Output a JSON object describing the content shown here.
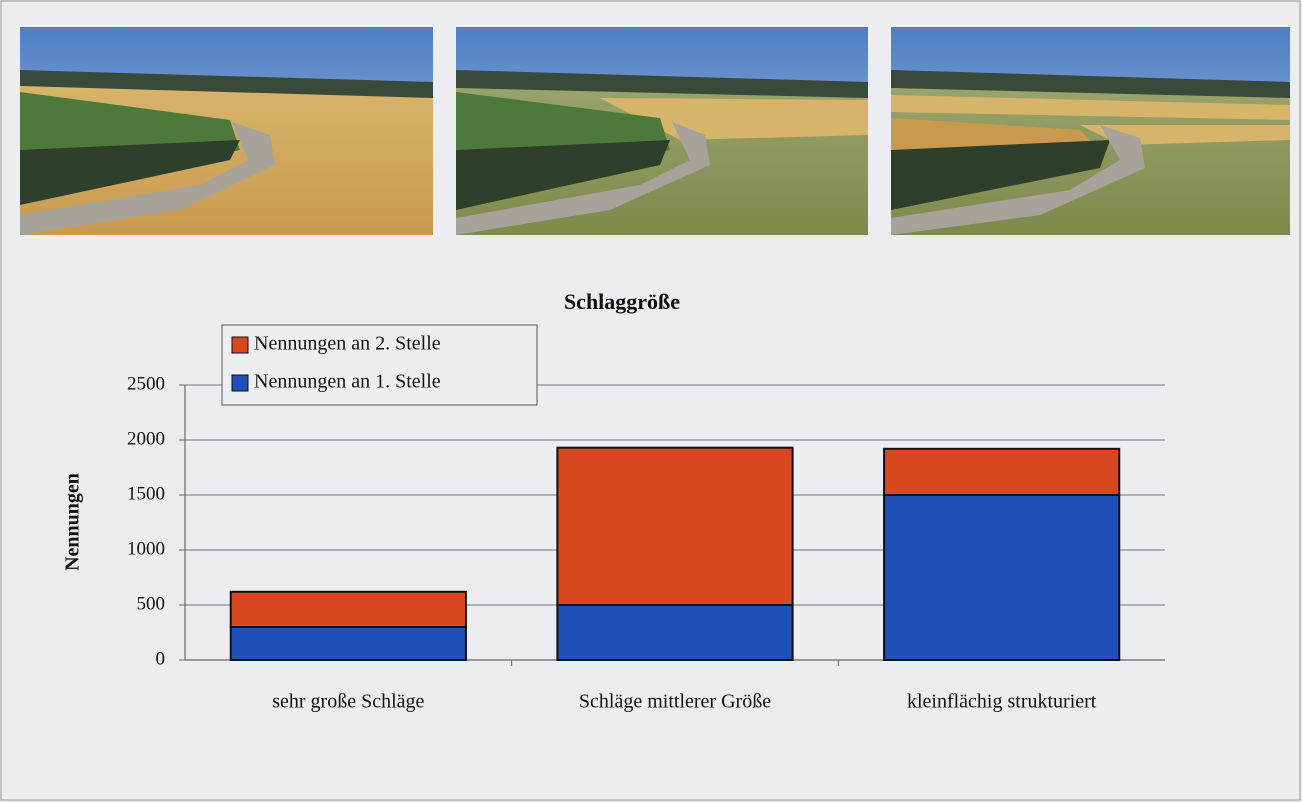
{
  "chart_data": {
    "type": "bar",
    "stacked": true,
    "title": "Schlaggröße",
    "ylabel": "Nennungen",
    "categories": [
      "sehr große Schläge",
      "Schläge mittlerer Größe",
      "kleinflächig strukturiert"
    ],
    "series": [
      {
        "name": "Nennungen an 1. Stelle",
        "color": "#1f4fb8",
        "values": [
          300,
          500,
          1500
        ]
      },
      {
        "name": "Nennungen an 2. Stelle",
        "color": "#d9471f",
        "values": [
          320,
          1430,
          420
        ]
      }
    ],
    "ylim": [
      0,
      2500
    ],
    "yticks": [
      0,
      500,
      1000,
      1500,
      2000,
      2500
    ],
    "grid": true,
    "legend": "top-left"
  }
}
